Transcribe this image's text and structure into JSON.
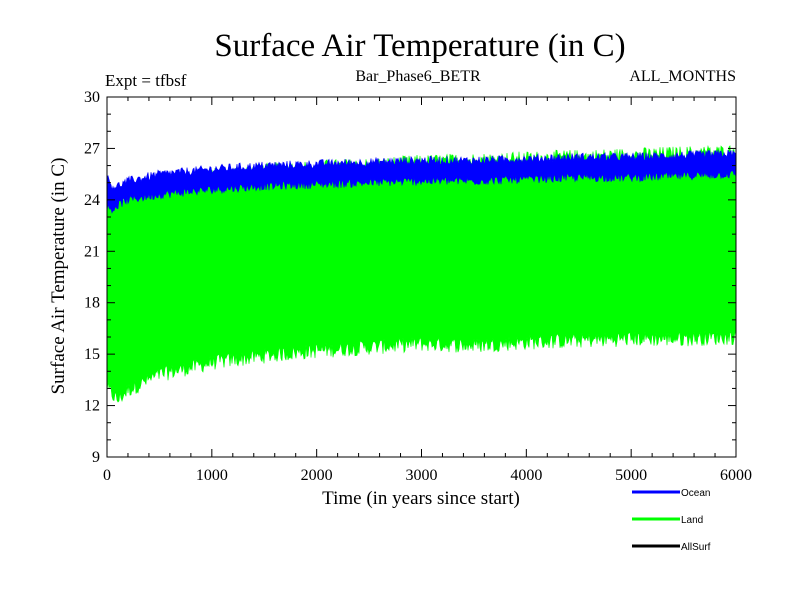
{
  "chart_data": {
    "type": "line",
    "title": "Surface Air Temperature (in C)",
    "subtitle_left": "Expt = tfbsf",
    "subtitle_center": "Bar_Phase6_BETR",
    "subtitle_right": "ALL_MONTHS",
    "xlabel": "Time (in years since start)",
    "ylabel": "Surface Air Temperature (in C)",
    "xlim": [
      0,
      6000
    ],
    "ylim": [
      9,
      30
    ],
    "xticks": [
      0,
      1000,
      2000,
      3000,
      4000,
      5000,
      6000
    ],
    "yticks": [
      9,
      12,
      15,
      18,
      21,
      24,
      27,
      30
    ],
    "legend_position": "bottom-right",
    "series": [
      {
        "name": "Land",
        "color": "#00ff00",
        "x": [
          0,
          100,
          200,
          500,
          1000,
          1500,
          2000,
          2500,
          3000,
          3500,
          4000,
          4500,
          5000,
          5500,
          6000
        ],
        "upper": [
          24.2,
          24.0,
          24.3,
          24.9,
          25.4,
          25.7,
          25.9,
          26.0,
          26.2,
          26.3,
          26.4,
          26.5,
          26.6,
          26.7,
          26.8
        ],
        "lower": [
          13.0,
          12.3,
          12.9,
          13.8,
          14.5,
          14.9,
          15.2,
          15.4,
          15.6,
          15.5,
          15.7,
          15.8,
          15.9,
          15.9,
          16.0
        ]
      },
      {
        "name": "Ocean",
        "color": "#0000ff",
        "x": [
          0,
          50,
          100,
          200,
          500,
          1000,
          1500,
          2000,
          2500,
          3000,
          3500,
          4000,
          4500,
          5000,
          5500,
          6000
        ],
        "upper": [
          25.3,
          24.8,
          24.8,
          25.1,
          25.5,
          25.8,
          26.0,
          26.1,
          26.2,
          26.3,
          26.3,
          26.4,
          26.5,
          26.5,
          26.6,
          26.7
        ],
        "lower": [
          23.6,
          23.4,
          23.7,
          24.0,
          24.3,
          24.6,
          24.8,
          24.9,
          25.0,
          25.1,
          25.1,
          25.2,
          25.3,
          25.3,
          25.4,
          25.5
        ]
      },
      {
        "name": "AllSurf",
        "color": "#000000",
        "x": [],
        "upper": [],
        "lower": []
      }
    ]
  }
}
